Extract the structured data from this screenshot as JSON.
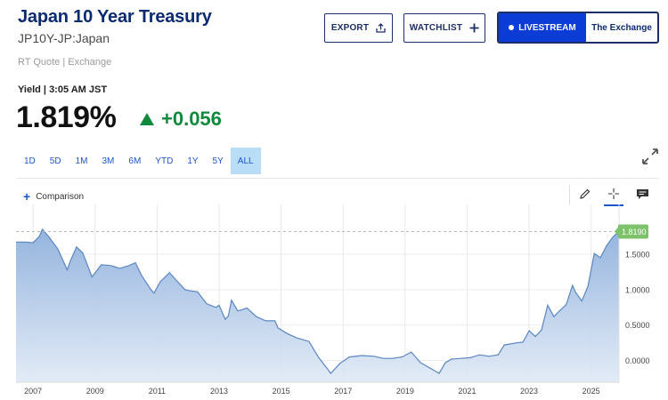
{
  "header": {
    "title": "Japan 10 Year Treasury",
    "symbol": "JP10Y-JP:Japan",
    "quote_source": "RT Quote | Exchange"
  },
  "actions": {
    "export_label": "EXPORT",
    "watchlist_label": "WATCHLIST",
    "livestream_label": "LIVESTREAM",
    "exchange_label": "The Exchange"
  },
  "quote": {
    "label": "Yield | 3:05 AM JST",
    "price": "1.819%",
    "change": "+0.056",
    "direction": "up"
  },
  "ranges": [
    {
      "label": "1D",
      "active": false
    },
    {
      "label": "5D",
      "active": false
    },
    {
      "label": "1M",
      "active": false
    },
    {
      "label": "3M",
      "active": false
    },
    {
      "label": "6M",
      "active": false
    },
    {
      "label": "YTD",
      "active": false
    },
    {
      "label": "1Y",
      "active": false
    },
    {
      "label": "5Y",
      "active": false
    },
    {
      "label": "ALL",
      "active": true
    }
  ],
  "toolbar": {
    "comparison_label": "Comparison"
  },
  "colors": {
    "accent": "#1c56c8",
    "up": "#0f8a3c",
    "line": "#5b86c0",
    "last_badge": "#7dc26b",
    "brand": "#0b2a6f"
  },
  "chart_data": {
    "type": "area",
    "x_ticks": [
      "2007",
      "2009",
      "2011",
      "2013",
      "2015",
      "2017",
      "2019",
      "2021",
      "2023",
      "2025"
    ],
    "y_ticks": [
      "1.5000",
      "1.0000",
      "0.5000",
      "0.0000"
    ],
    "ylim": [
      -0.18,
      1.95
    ],
    "xlim": [
      2006.45,
      2025.9
    ],
    "last_value_label": "1.8190",
    "grid": true,
    "points": [
      [
        2006.45,
        1.67
      ],
      [
        2006.8,
        1.67
      ],
      [
        2007.0,
        1.66
      ],
      [
        2007.2,
        1.75
      ],
      [
        2007.3,
        1.85
      ],
      [
        2007.5,
        1.75
      ],
      [
        2007.8,
        1.57
      ],
      [
        2008.1,
        1.28
      ],
      [
        2008.2,
        1.4
      ],
      [
        2008.4,
        1.6
      ],
      [
        2008.6,
        1.52
      ],
      [
        2008.9,
        1.18
      ],
      [
        2009.2,
        1.35
      ],
      [
        2009.5,
        1.34
      ],
      [
        2009.8,
        1.3
      ],
      [
        2010.1,
        1.34
      ],
      [
        2010.3,
        1.38
      ],
      [
        2010.5,
        1.2
      ],
      [
        2010.8,
        1.0
      ],
      [
        2010.9,
        0.95
      ],
      [
        2011.1,
        1.11
      ],
      [
        2011.4,
        1.24
      ],
      [
        2011.6,
        1.14
      ],
      [
        2011.9,
        1.0
      ],
      [
        2012.1,
        0.98
      ],
      [
        2012.3,
        0.97
      ],
      [
        2012.6,
        0.8
      ],
      [
        2012.9,
        0.75
      ],
      [
        2013.0,
        0.78
      ],
      [
        2013.2,
        0.58
      ],
      [
        2013.3,
        0.63
      ],
      [
        2013.4,
        0.85
      ],
      [
        2013.6,
        0.7
      ],
      [
        2013.9,
        0.74
      ],
      [
        2014.2,
        0.62
      ],
      [
        2014.5,
        0.56
      ],
      [
        2014.8,
        0.56
      ],
      [
        2014.9,
        0.46
      ],
      [
        2015.2,
        0.38
      ],
      [
        2015.5,
        0.32
      ],
      [
        2015.9,
        0.27
      ],
      [
        2016.2,
        0.05
      ],
      [
        2016.5,
        -0.12
      ],
      [
        2016.6,
        -0.18
      ],
      [
        2016.9,
        -0.04
      ],
      [
        2017.2,
        0.05
      ],
      [
        2017.6,
        0.07
      ],
      [
        2018.0,
        0.06
      ],
      [
        2018.3,
        0.03
      ],
      [
        2018.6,
        0.03
      ],
      [
        2018.9,
        0.05
      ],
      [
        2019.2,
        0.12
      ],
      [
        2019.5,
        -0.03
      ],
      [
        2019.9,
        -0.13
      ],
      [
        2020.1,
        -0.18
      ],
      [
        2020.3,
        -0.03
      ],
      [
        2020.5,
        0.02
      ],
      [
        2020.8,
        0.03
      ],
      [
        2021.1,
        0.04
      ],
      [
        2021.4,
        0.08
      ],
      [
        2021.7,
        0.06
      ],
      [
        2022.0,
        0.08
      ],
      [
        2022.2,
        0.22
      ],
      [
        2022.6,
        0.25
      ],
      [
        2022.8,
        0.26
      ],
      [
        2023.0,
        0.42
      ],
      [
        2023.2,
        0.34
      ],
      [
        2023.4,
        0.43
      ],
      [
        2023.6,
        0.78
      ],
      [
        2023.8,
        0.62
      ],
      [
        2024.0,
        0.71
      ],
      [
        2024.2,
        0.79
      ],
      [
        2024.4,
        1.06
      ],
      [
        2024.5,
        0.96
      ],
      [
        2024.7,
        0.84
      ],
      [
        2024.9,
        1.05
      ],
      [
        2025.1,
        1.51
      ],
      [
        2025.3,
        1.45
      ],
      [
        2025.5,
        1.62
      ],
      [
        2025.7,
        1.74
      ],
      [
        2025.9,
        1.819
      ]
    ]
  }
}
